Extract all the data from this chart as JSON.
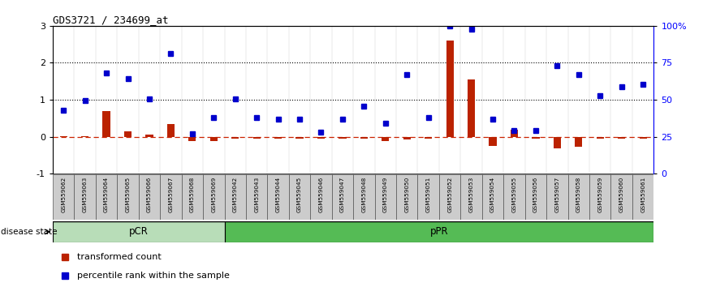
{
  "title": "GDS3721 / 234699_at",
  "samples": [
    "GSM559062",
    "GSM559063",
    "GSM559064",
    "GSM559065",
    "GSM559066",
    "GSM559067",
    "GSM559068",
    "GSM559069",
    "GSM559042",
    "GSM559043",
    "GSM559044",
    "GSM559045",
    "GSM559046",
    "GSM559047",
    "GSM559048",
    "GSM559049",
    "GSM559050",
    "GSM559051",
    "GSM559052",
    "GSM559053",
    "GSM559054",
    "GSM559055",
    "GSM559056",
    "GSM559057",
    "GSM559058",
    "GSM559059",
    "GSM559060",
    "GSM559061"
  ],
  "transformed_count": [
    0.02,
    0.02,
    0.7,
    0.15,
    0.05,
    0.35,
    -0.12,
    -0.12,
    -0.05,
    -0.05,
    -0.05,
    -0.05,
    -0.05,
    -0.05,
    -0.05,
    -0.12,
    -0.07,
    -0.05,
    2.6,
    1.55,
    -0.25,
    0.18,
    -0.05,
    -0.32,
    -0.27,
    -0.05,
    -0.05,
    -0.05
  ],
  "percentile_rank": [
    0.72,
    0.97,
    1.72,
    1.58,
    1.02,
    2.25,
    0.07,
    0.52,
    1.02,
    0.52,
    0.47,
    0.47,
    0.12,
    0.47,
    0.82,
    0.37,
    1.67,
    0.52,
    3.0,
    2.9,
    0.47,
    0.17,
    0.17,
    1.93,
    1.67,
    1.12,
    1.35,
    1.42
  ],
  "pCR_count": 8,
  "bar_color": "#bb2200",
  "dot_color": "#0000cc",
  "pCR_color": "#b8ddb8",
  "pPR_color": "#55bb55",
  "bg_color": "#ffffff",
  "ylim": [
    -1,
    3
  ],
  "left_ticks": [
    -1,
    0,
    1,
    2,
    3
  ],
  "right_tick_positions": [
    0,
    25,
    50,
    75,
    100
  ],
  "right_tick_labels": [
    "0",
    "25",
    "50",
    "75",
    "100%"
  ],
  "dotted_lines": [
    1,
    2
  ],
  "zero_line_color": "#cc2200",
  "legend_red": "transformed count",
  "legend_blue": "percentile rank within the sample",
  "label_fontsize": 5.2,
  "bar_width": 0.35
}
